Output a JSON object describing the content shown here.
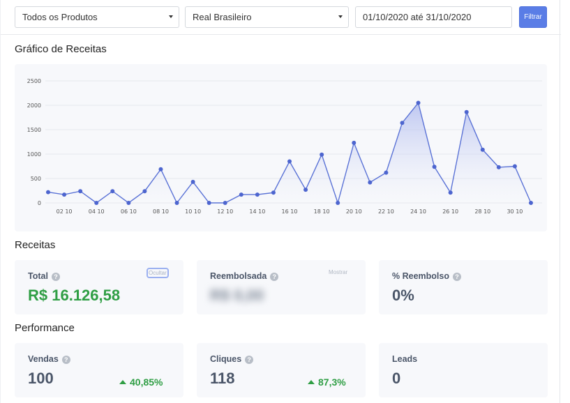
{
  "filters": {
    "product_select": "Todos os Produtos",
    "currency_select": "Real Brasileiro",
    "date_range": "01/10/2020 até 31/10/2020",
    "filter_button": "Filtrar"
  },
  "revenue_chart": {
    "title": "Gráfico de Receitas"
  },
  "chart_data": {
    "type": "area",
    "title": "",
    "xlabel": "",
    "ylabel": "",
    "ylim": [
      0,
      2500
    ],
    "yticks": [
      0,
      500,
      1000,
      1500,
      2000,
      2500
    ],
    "grid": true,
    "x_tick_labels": [
      "02 10",
      "04 10",
      "06 10",
      "08 10",
      "10 10",
      "12 10",
      "14 10",
      "16 10",
      "18 10",
      "20 10",
      "22 10",
      "24 10",
      "26 10",
      "28 10",
      "30 10"
    ],
    "x": [
      "01 10",
      "02 10",
      "03 10",
      "04 10",
      "05 10",
      "06 10",
      "07 10",
      "08 10",
      "09 10",
      "10 10",
      "11 10",
      "12 10",
      "13 10",
      "14 10",
      "15 10",
      "16 10",
      "17 10",
      "18 10",
      "19 10",
      "20 10",
      "21 10",
      "22 10",
      "23 10",
      "24 10",
      "25 10",
      "26 10",
      "27 10",
      "28 10",
      "29 10",
      "30 10",
      "31 10"
    ],
    "series": [
      {
        "values": [
          220,
          170,
          240,
          0,
          240,
          0,
          240,
          690,
          0,
          430,
          0,
          0,
          170,
          170,
          210,
          850,
          270,
          990,
          0,
          1230,
          420,
          620,
          1640,
          2050,
          740,
          210,
          1860,
          1090,
          730,
          750,
          0
        ]
      }
    ],
    "colors": {
      "line": "#5a72d6",
      "point": "#4d65cf",
      "fill_top": "#aab6ee",
      "fill_bottom": "#f7f8fb",
      "grid": "#e4e7ec"
    }
  },
  "receitas": {
    "title": "Receitas",
    "total_label": "Total",
    "total_value": "R$ 16.126,58",
    "total_toggle": "Ocultar",
    "refunded_label": "Reembolsada",
    "refunded_value": "R$ 0,00",
    "refunded_toggle": "Mostrar",
    "refund_pct_label": "% Reembolso",
    "refund_pct_value": "0%"
  },
  "performance": {
    "title": "Performance",
    "sales_label": "Vendas",
    "sales_value": "100",
    "sales_delta": "40,85%",
    "clicks_label": "Cliques",
    "clicks_value": "118",
    "clicks_delta": "87,3%",
    "leads_label": "Leads",
    "leads_value": "0"
  },
  "icons": {
    "help": "question-circle-icon",
    "caret": "caret-down-icon",
    "trend": "triangle-up-icon"
  },
  "help_glyph": "?"
}
